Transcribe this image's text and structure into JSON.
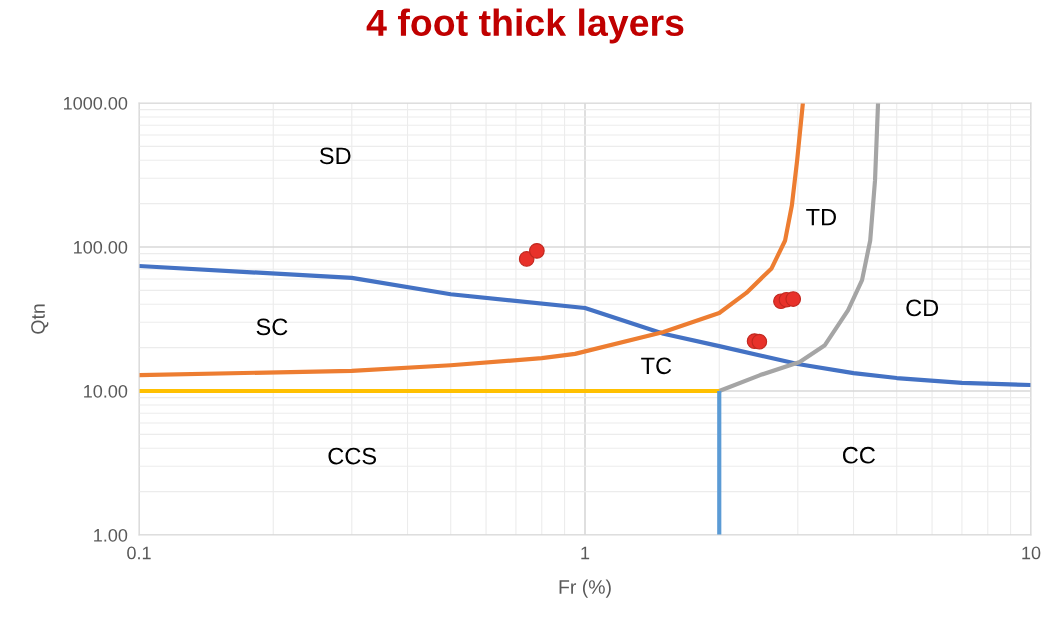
{
  "chart_data": {
    "type": "line",
    "title": "4 foot thick layers",
    "xlabel": "Fr (%)",
    "ylabel": "Qtn",
    "log": "xy",
    "grid": true,
    "marker": "none",
    "line_style": "solid",
    "xlim": [
      0.1,
      10
    ],
    "xticks": [
      0.1,
      1,
      10
    ],
    "ylim": [
      1,
      1000
    ],
    "yticks": [
      {
        "value": 1,
        "label": "1.00"
      },
      {
        "value": 10,
        "label": "10.00"
      },
      {
        "value": 100,
        "label": "100.00"
      },
      {
        "value": 1000,
        "label": "1000.00"
      }
    ],
    "series": [
      {
        "color": "#4472c4",
        "x": [
          0.1,
          0.3,
          0.5,
          1,
          1.5,
          2,
          3,
          4,
          5,
          7,
          10
        ],
        "values": [
          73.8,
          61,
          47,
          37.7,
          25,
          20.5,
          15.4,
          13.3,
          12.3,
          11.4,
          11.0
        ]
      },
      {
        "color": "#ed7d31",
        "x": [
          0.1,
          0.3,
          0.5,
          0.8,
          0.95,
          1.5,
          2,
          2.3,
          2.62,
          2.81,
          2.91,
          2.99,
          3.08
        ],
        "values": [
          12.9,
          13.8,
          15.1,
          16.9,
          18.1,
          25.7,
          34.8,
          48,
          71,
          111,
          195,
          400,
          1000
        ]
      },
      {
        "color": "#a5a5a5",
        "x": [
          2,
          2.47,
          3.03,
          3.45,
          3.89,
          4.18,
          4.36,
          4.47,
          4.54
        ],
        "values": [
          10,
          12.9,
          15.9,
          20.8,
          36.5,
          58.9,
          111,
          291,
          1000
        ]
      },
      {
        "color": "#ffc000",
        "x": [
          0.1,
          2
        ],
        "values": [
          10,
          10
        ]
      },
      {
        "color": "#5b9bd5",
        "x": [
          2,
          2
        ],
        "values": [
          1,
          10
        ]
      },
      {
        "type": "scatter",
        "color": "#e8312a",
        "marker": "circle",
        "x": [
          0.74,
          0.78,
          2.75,
          2.83,
          2.93,
          2.4,
          2.46
        ],
        "values": [
          82.6,
          94,
          42,
          43,
          43.5,
          22.2,
          22
        ]
      }
    ],
    "annotations": [
      "SD",
      "SC",
      "CCS",
      "TC",
      "TD",
      "CD",
      "CC"
    ]
  }
}
